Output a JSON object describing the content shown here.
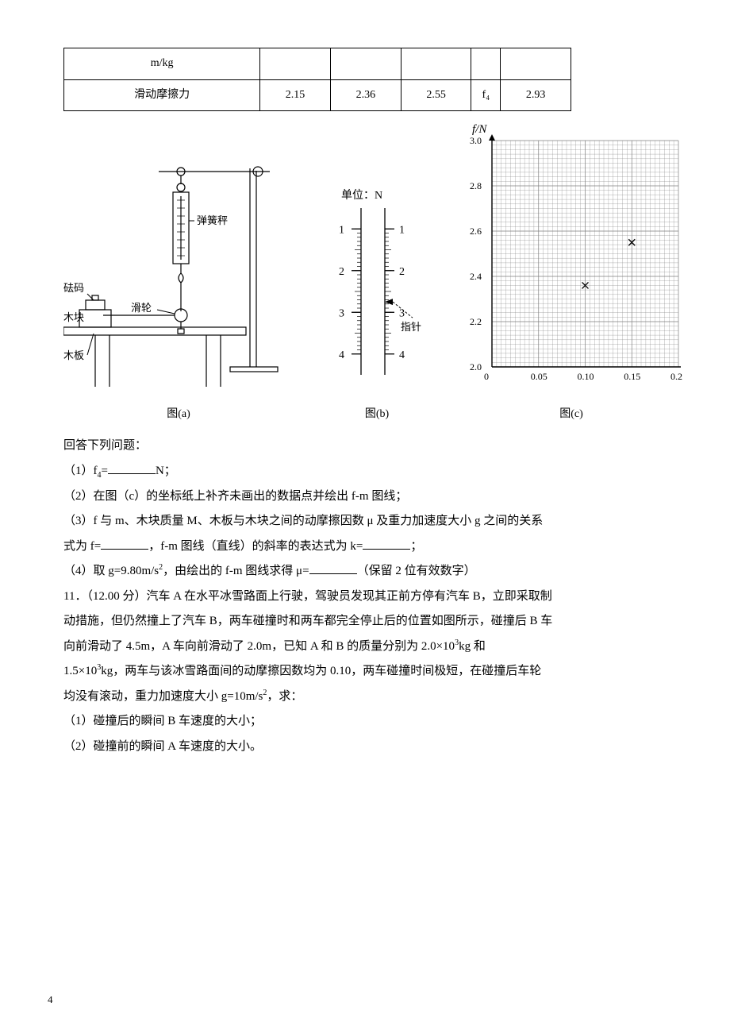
{
  "table": {
    "row1_label": "m/kg",
    "row2_label": "滑动摩擦力",
    "row2_values": [
      "2.15",
      "2.36",
      "2.55",
      "f₄",
      "2.93"
    ]
  },
  "fig_a": {
    "labels": {
      "spring": "弹簧秤",
      "weight": "砝码",
      "block": "木块",
      "pulley": "滑轮",
      "board": "木板"
    },
    "caption": "图(a)",
    "colors": {
      "line": "#000000",
      "hatch": "#000000"
    }
  },
  "fig_b": {
    "unit_label": "单位：N",
    "pointer_label": "指针",
    "ticks": [
      1,
      2,
      3,
      4
    ],
    "caption": "图(b)",
    "pointer_at": 2.75
  },
  "fig_c": {
    "y_label": "f/N",
    "caption": "图(c)",
    "ylim": [
      2.0,
      3.0
    ],
    "ytick_step": 0.2,
    "yticks": [
      "2.0",
      "2.2",
      "2.4",
      "2.6",
      "2.8",
      "3.0"
    ],
    "xlim": [
      0,
      0.2
    ],
    "xticks": [
      "0",
      "0.05",
      "0.10",
      "0.15",
      "0.20"
    ],
    "grid_color": "#7f7f7f",
    "axis_color": "#000000",
    "point_marker": "×",
    "points": [
      {
        "x": 0.1,
        "y": 2.36
      },
      {
        "x": 0.15,
        "y": 2.55
      }
    ]
  },
  "text": {
    "answer_prompt": "回答下列问题：",
    "q1_a": "（1）f",
    "q1_b": "=",
    "q1_c": "N；",
    "q2": "（2）在图（c）的坐标纸上补齐未画出的数据点并绘出 f‐m 图线；",
    "q3a": "（3）f 与 m、木块质量 M、木板与木块之间的动摩擦因数 μ 及重力加速度大小 g 之间的关系",
    "q3b_a": "式为 f=",
    "q3b_b": "，f‐m 图线（直线）的斜率的表达式为 k=",
    "q3b_c": "；",
    "q4_a": "（4）取 g=9.80m/s",
    "q4_b": "，由绘出的 f‐m 图线求得 μ=",
    "q4_c": "（保留 2 位有效数字）",
    "p11_1": "11．（12.00 分）汽车 A 在水平冰雪路面上行驶，驾驶员发现其正前方停有汽车 B，立即采取制",
    "p11_2": "动措施，但仍然撞上了汽车 B，两车碰撞时和两车都完全停止后的位置如图所示，碰撞后 B 车",
    "p11_3a": "向前滑动了 4.5m，A 车向前滑动了 2.0m，已知 A 和 B 的质量分别为 2.0×10",
    "p11_3b": "kg 和",
    "p11_4a": "1.5×10",
    "p11_4b": "kg，两车与该冰雪路面间的动摩擦因数均为 0.10，两车碰撞时间极短，在碰撞后车轮",
    "p11_5a": "均没有滚动，重力加速度大小 g=10m/s",
    "p11_5b": "，求：",
    "p11_q1": "（1）碰撞后的瞬间 B 车速度的大小；",
    "p11_q2": "（2）碰撞前的瞬间 A 车速度的大小。"
  },
  "page_number": "4"
}
